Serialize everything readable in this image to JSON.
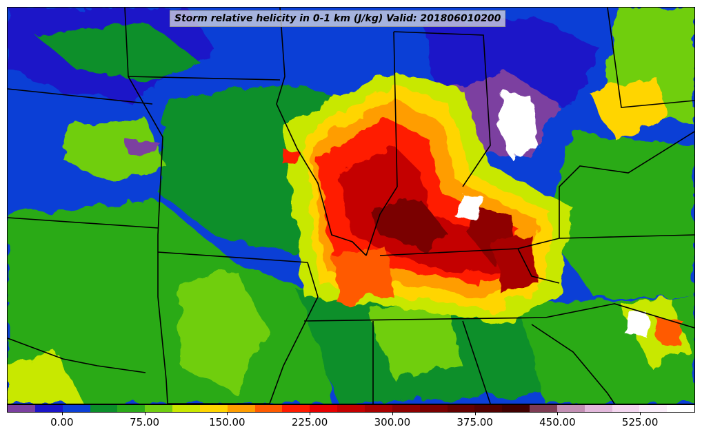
{
  "title": "Storm relative helicity in 0-1 km (J/kg) Valid: 201806010200",
  "colorbar": {
    "colors": [
      "#7b3fa0",
      "#1a14c8",
      "#0b3fd6",
      "#0b8f2a",
      "#2aaa18",
      "#6fce10",
      "#c8e800",
      "#ffd500",
      "#ff9d00",
      "#ff5a00",
      "#ff1a00",
      "#e60000",
      "#c40000",
      "#a80000",
      "#8e0000",
      "#7a0000",
      "#640000",
      "#520000",
      "#400000",
      "#7e3b53",
      "#c38fb4",
      "#e3b9dc",
      "#f4d7f0",
      "#fbeefa",
      "#ffffff"
    ],
    "ticks": [
      {
        "value": 0,
        "label": "0.00"
      },
      {
        "value": 75,
        "label": "75.00"
      },
      {
        "value": 150,
        "label": "150.00"
      },
      {
        "value": 225,
        "label": "225.00"
      },
      {
        "value": 300,
        "label": "300.00"
      },
      {
        "value": 375,
        "label": "375.00"
      },
      {
        "value": 450,
        "label": "450.00"
      },
      {
        "value": 525,
        "label": "525.00"
      }
    ],
    "min": -50,
    "max": 575
  },
  "map": {
    "field": "Storm relative helicity 0-1 km",
    "units": "J/kg",
    "valid": "201806010200",
    "background_color": "#0b3fd6",
    "border_color": "#000000"
  }
}
